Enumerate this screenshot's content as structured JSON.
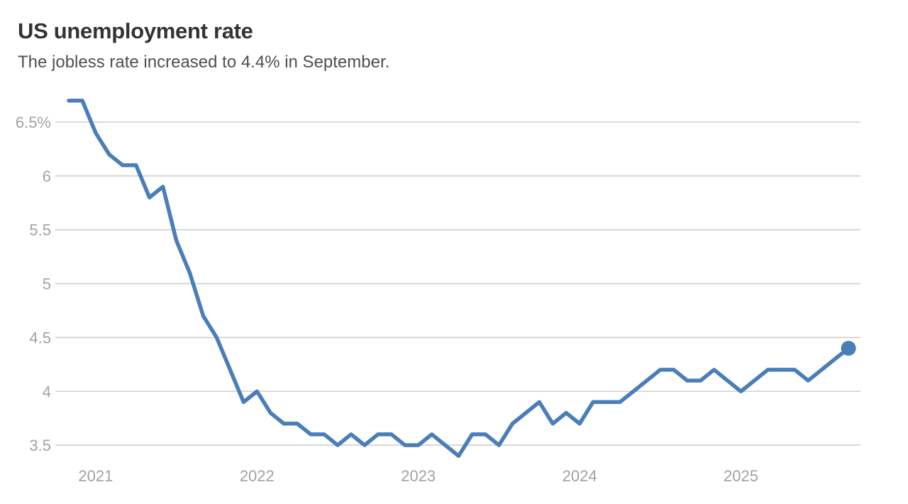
{
  "header": {
    "title": "US unemployment rate",
    "subtitle": "The jobless rate increased to 4.4% in September."
  },
  "colors": {
    "line": "#4a7eb8",
    "endpoint_dot": "#4a7eb8",
    "grid": "#cfcfcf",
    "axis_text": "#a2a2a2",
    "title_text": "#333333",
    "subtitle_text": "#4f4f4f",
    "background": "#ffffff"
  },
  "chart_data": {
    "type": "line",
    "title": "US unemployment rate",
    "subtitle": "The jobless rate increased to 4.4% in September.",
    "unit": "%",
    "grid": "horizontal-only",
    "legend": "none",
    "ylim": [
      3.3,
      6.8
    ],
    "y_ticks": [
      {
        "label": "6.5%",
        "value": 6.5
      },
      {
        "label": "6",
        "value": 6.0
      },
      {
        "label": "5.5",
        "value": 5.5
      },
      {
        "label": "5",
        "value": 5.0
      },
      {
        "label": "4.5",
        "value": 4.5
      },
      {
        "label": "4",
        "value": 4.0
      },
      {
        "label": "3.5",
        "value": 3.5
      }
    ],
    "x_ticks": [
      {
        "label": "2021",
        "index": 2
      },
      {
        "label": "2022",
        "index": 14
      },
      {
        "label": "2023",
        "index": 26
      },
      {
        "label": "2024",
        "index": 38
      },
      {
        "label": "2025",
        "index": 50
      }
    ],
    "x": [
      "2020-11",
      "2020-12",
      "2021-01",
      "2021-02",
      "2021-03",
      "2021-04",
      "2021-05",
      "2021-06",
      "2021-07",
      "2021-08",
      "2021-09",
      "2021-10",
      "2021-11",
      "2021-12",
      "2022-01",
      "2022-02",
      "2022-03",
      "2022-04",
      "2022-05",
      "2022-06",
      "2022-07",
      "2022-08",
      "2022-09",
      "2022-10",
      "2022-11",
      "2022-12",
      "2023-01",
      "2023-02",
      "2023-03",
      "2023-04",
      "2023-05",
      "2023-06",
      "2023-07",
      "2023-08",
      "2023-09",
      "2023-10",
      "2023-11",
      "2023-12",
      "2024-01",
      "2024-02",
      "2024-03",
      "2024-04",
      "2024-05",
      "2024-06",
      "2024-07",
      "2024-08",
      "2024-09",
      "2024-10",
      "2024-11",
      "2024-12",
      "2025-01",
      "2025-02",
      "2025-03",
      "2025-04",
      "2025-05",
      "2025-06",
      "2025-07",
      "2025-08",
      "2025-09"
    ],
    "values": [
      6.7,
      6.7,
      6.4,
      6.2,
      6.1,
      6.1,
      5.8,
      5.9,
      5.4,
      5.1,
      4.7,
      4.5,
      4.2,
      3.9,
      4.0,
      3.8,
      3.7,
      3.7,
      3.6,
      3.6,
      3.5,
      3.6,
      3.5,
      3.6,
      3.6,
      3.5,
      3.5,
      3.6,
      3.5,
      3.4,
      3.6,
      3.6,
      3.5,
      3.7,
      3.8,
      3.9,
      3.7,
      3.8,
      3.7,
      3.9,
      3.9,
      3.9,
      4.0,
      4.1,
      4.2,
      4.2,
      4.1,
      4.1,
      4.2,
      4.1,
      4.0,
      4.1,
      4.2,
      4.2,
      4.2,
      4.1,
      4.2,
      4.3,
      4.4
    ],
    "endpoint": {
      "x": "2025-09",
      "value": 4.4,
      "marker": "dot"
    }
  }
}
